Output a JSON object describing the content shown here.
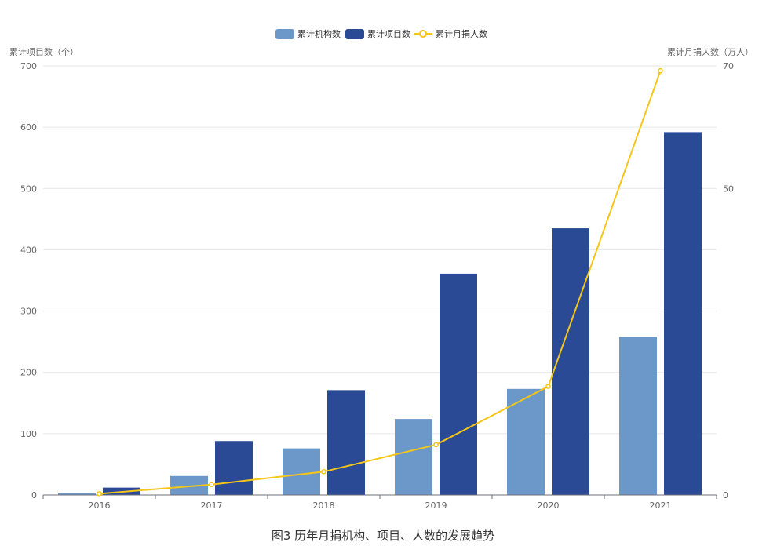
{
  "caption": "图3 历年月捐机构、项目、人数的发展趋势",
  "chart_data": {
    "type": "bar",
    "categories": [
      "2016",
      "2017",
      "2018",
      "2019",
      "2020",
      "2021"
    ],
    "series": [
      {
        "name": "累计机构数",
        "kind": "bar",
        "axis": "left",
        "color": "#6b98c9",
        "values": [
          3,
          31,
          76,
          124,
          173,
          258
        ]
      },
      {
        "name": "累计项目数",
        "kind": "bar",
        "axis": "left",
        "color": "#2a4a96",
        "values": [
          12,
          88,
          171,
          361,
          435,
          592
        ]
      },
      {
        "name": "累计月捐人数",
        "kind": "line",
        "axis": "right",
        "color": "#f5c518",
        "values": [
          0.2,
          1.7,
          3.8,
          8.2,
          17.7,
          69.2
        ]
      }
    ],
    "y_left": {
      "label": "累计项目数（个）",
      "min": 0,
      "max": 700,
      "ticks": [
        "0",
        "100",
        "200",
        "300",
        "400",
        "500",
        "600",
        "700"
      ]
    },
    "y_right": {
      "label": "累计月捐人数（万人）",
      "min": 0,
      "max": 70,
      "ticks": [
        "0",
        "50",
        "70"
      ]
    },
    "grid": true,
    "legend_position": "top-center"
  }
}
